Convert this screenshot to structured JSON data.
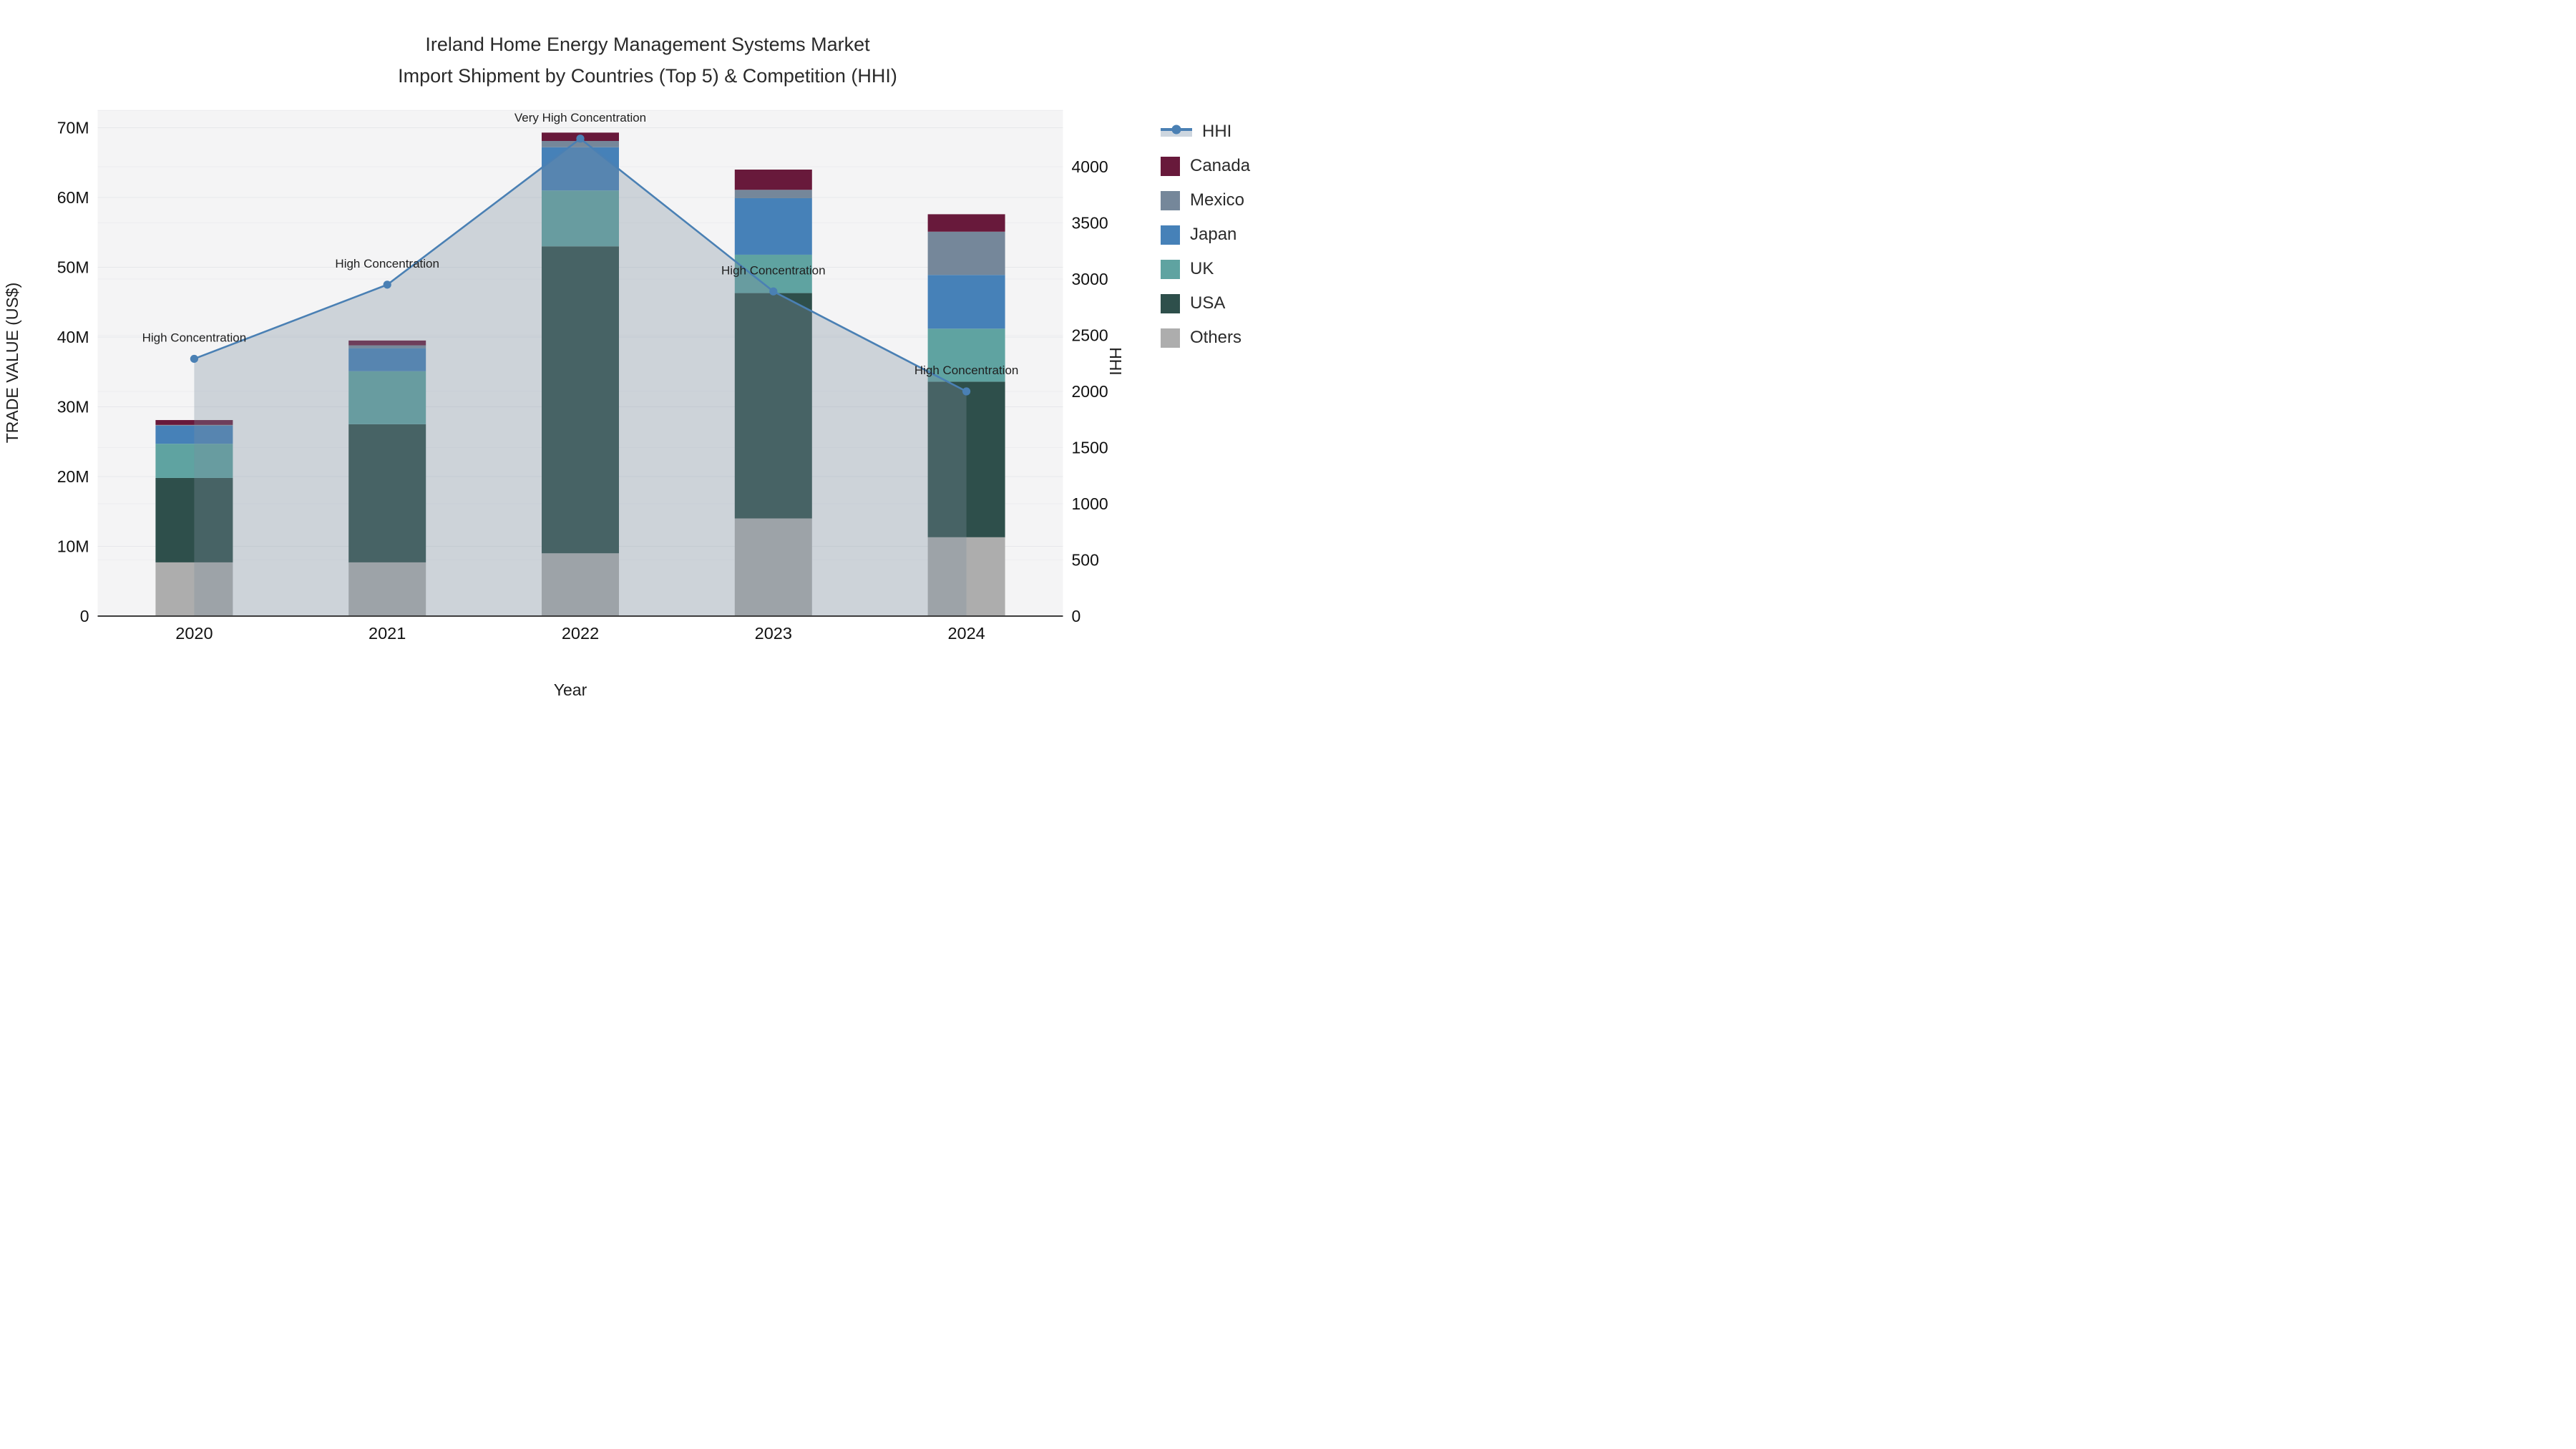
{
  "chart_data": {
    "type": "combo-stacked-bar-line",
    "title": "Ireland Home Energy Management Systems Market",
    "subtitle": "Import Shipment by Countries (Top 5) & Competition (HHI)",
    "xlabel": "Year",
    "ylabel_left": "TRADE VALUE (US$)",
    "ylabel_right": "HHI",
    "categories": [
      "2020",
      "2021",
      "2022",
      "2023",
      "2024"
    ],
    "left_axis": {
      "unit": "M US$",
      "range": [
        0,
        70
      ],
      "tick_labels": [
        "0",
        "10M",
        "20M",
        "30M",
        "40M",
        "50M",
        "60M",
        "70M"
      ],
      "tick_values": [
        0,
        10,
        20,
        30,
        40,
        50,
        60,
        70
      ]
    },
    "right_axis": {
      "range": [
        0,
        4500
      ],
      "tick_labels": [
        "0",
        "500",
        "1000",
        "1500",
        "2000",
        "2500",
        "3000",
        "3500",
        "4000"
      ],
      "tick_values": [
        0,
        500,
        1000,
        1500,
        2000,
        2500,
        3000,
        3500,
        4000
      ]
    },
    "series": [
      {
        "name": "Others",
        "color": "#ADADAD",
        "values": [
          7.7,
          7.7,
          9.0,
          14.0,
          11.3
        ]
      },
      {
        "name": "USA",
        "color": "#2E4F4B",
        "values": [
          12.1,
          19.8,
          44.0,
          32.3,
          22.3
        ]
      },
      {
        "name": "UK",
        "color": "#5FA3A1",
        "values": [
          4.9,
          7.6,
          8.0,
          5.5,
          7.6
        ]
      },
      {
        "name": "Japan",
        "color": "#4681B8",
        "values": [
          2.6,
          3.3,
          6.2,
          8.1,
          7.7
        ]
      },
      {
        "name": "Mexico",
        "color": "#75879A",
        "values": [
          0.1,
          0.4,
          0.9,
          1.2,
          6.2
        ]
      },
      {
        "name": "Canada",
        "color": "#68193B",
        "values": [
          0.7,
          0.7,
          1.2,
          2.9,
          2.5
        ]
      }
    ],
    "hhi": {
      "name": "HHI",
      "values": [
        2290,
        2950,
        4250,
        2890,
        2000
      ],
      "annotations": [
        "High Concentration",
        "High Concentration",
        "Very High Concentration",
        "High Concentration",
        "High Concentration"
      ],
      "line_color": "#4A80B4",
      "area_fill_color": "rgba(125,143,160,0.32)",
      "legend_band_color": "#CDD6DF"
    },
    "legend_order": [
      "HHI",
      "Canada",
      "Mexico",
      "Japan",
      "UK",
      "USA",
      "Others"
    ],
    "layout_hints": {
      "plot_background": "#F4F4F5",
      "grid_major_color": "#E6E7EA",
      "grid_minor_color": "#EDEDF0",
      "baseline_color": "#3C3C3C",
      "legend_position": "right",
      "bar_totals": [
        28.1,
        39.5,
        69.3,
        64.0,
        57.6
      ]
    }
  }
}
